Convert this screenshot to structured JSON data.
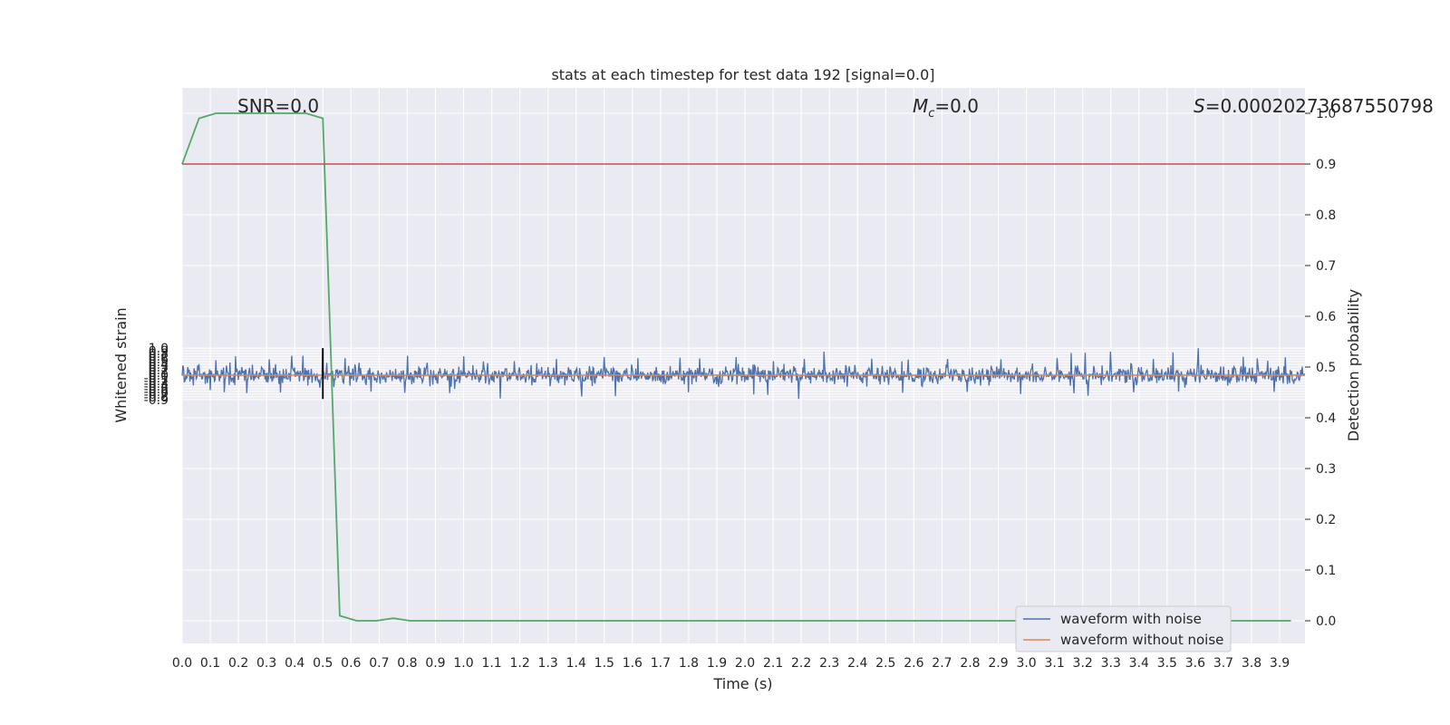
{
  "chart_data": {
    "type": "line",
    "title": "stats at each timestep for test data 192 [signal=0.0]",
    "xlabel": "Time (s)",
    "ylabel": "Whitened strain",
    "y2label": "Detection probability",
    "xlim": [
      0.0,
      3.99
    ],
    "ylim": [
      -0.97,
      1.08
    ],
    "y2lim": [
      -0.05,
      1.05
    ],
    "x_ticks": [
      0.0,
      0.1,
      0.2,
      0.3,
      0.4,
      0.5,
      0.6,
      0.7,
      0.8,
      0.9,
      1.0,
      1.1,
      1.2,
      1.3,
      1.4,
      1.5,
      1.6,
      1.7,
      1.8,
      1.9,
      2.0,
      2.1,
      2.2,
      2.3,
      2.4,
      2.5,
      2.6,
      2.7,
      2.8,
      2.9,
      3.0,
      3.1,
      3.2,
      3.3,
      3.4,
      3.5,
      3.6,
      3.7,
      3.8,
      3.9
    ],
    "y_ticks": [
      1.0,
      0.9,
      0.8,
      0.7,
      0.6,
      0.5,
      0.4,
      0.3,
      0.2,
      0.1,
      0.0,
      -0.1,
      -0.2,
      -0.3,
      -0.4,
      -0.5,
      -0.6,
      -0.7,
      -0.8,
      -0.9
    ],
    "y2_ticks": [
      1.0,
      0.9,
      0.8,
      0.7,
      0.6,
      0.5,
      0.4,
      0.3,
      0.2,
      0.1,
      0.0
    ],
    "grid": true,
    "legend_placement": "lower-right",
    "annotations": {
      "snr": "SNR=0.0",
      "mc_symbol": "M",
      "mc_sub": "c",
      "mc_value": "=0.0",
      "s_symbol": "S",
      "s_value": "=0.00020273687550798"
    },
    "series": [
      {
        "name": "waveform with noise",
        "color": "#4c72b0",
        "note_envelope": "dense noise trace; envelope approx. peaks listed",
        "peaks": [
          {
            "x": 0.02,
            "y": 0.3
          },
          {
            "x": 0.06,
            "y": 0.41
          },
          {
            "x": 0.12,
            "y": 0.55
          },
          {
            "x": 0.17,
            "y": 0.47
          },
          {
            "x": 0.19,
            "y": 0.7
          },
          {
            "x": 0.25,
            "y": 0.39
          },
          {
            "x": 0.31,
            "y": 0.59
          },
          {
            "x": 0.39,
            "y": 0.72
          },
          {
            "x": 0.43,
            "y": 0.72
          },
          {
            "x": 0.5,
            "y": 1.0
          },
          {
            "x": 0.58,
            "y": 0.63
          },
          {
            "x": 0.63,
            "y": 0.46
          },
          {
            "x": 0.8,
            "y": 0.72
          },
          {
            "x": 0.87,
            "y": 0.46
          },
          {
            "x": 1.0,
            "y": 0.7
          },
          {
            "x": 1.07,
            "y": 0.51
          },
          {
            "x": 1.18,
            "y": 0.52
          },
          {
            "x": 1.33,
            "y": 0.6
          },
          {
            "x": 1.5,
            "y": 0.67
          },
          {
            "x": 1.62,
            "y": 0.63
          },
          {
            "x": 1.77,
            "y": 0.65
          },
          {
            "x": 1.84,
            "y": 0.62
          },
          {
            "x": 1.97,
            "y": 0.67
          },
          {
            "x": 2.1,
            "y": 0.52
          },
          {
            "x": 2.21,
            "y": 0.6
          },
          {
            "x": 2.28,
            "y": 0.87
          },
          {
            "x": 2.45,
            "y": 0.61
          },
          {
            "x": 2.58,
            "y": 0.58
          },
          {
            "x": 2.72,
            "y": 0.6
          },
          {
            "x": 2.91,
            "y": 0.59
          },
          {
            "x": 3.11,
            "y": 0.63
          },
          {
            "x": 3.16,
            "y": 0.82
          },
          {
            "x": 3.21,
            "y": 0.83
          },
          {
            "x": 3.3,
            "y": 0.87
          },
          {
            "x": 3.45,
            "y": 0.6
          },
          {
            "x": 3.52,
            "y": 0.84
          },
          {
            "x": 3.61,
            "y": 1.0
          },
          {
            "x": 3.77,
            "y": 0.68
          },
          {
            "x": 3.82,
            "y": 0.62
          },
          {
            "x": 3.92,
            "y": 0.66
          }
        ],
        "troughs": [
          {
            "x": 0.04,
            "y": -0.38
          },
          {
            "x": 0.1,
            "y": -0.55
          },
          {
            "x": 0.15,
            "y": -0.63
          },
          {
            "x": 0.23,
            "y": -0.66
          },
          {
            "x": 0.35,
            "y": -0.64
          },
          {
            "x": 0.49,
            "y": -0.46
          },
          {
            "x": 0.67,
            "y": -0.61
          },
          {
            "x": 0.79,
            "y": -0.65
          },
          {
            "x": 0.95,
            "y": -0.66
          },
          {
            "x": 1.13,
            "y": -0.86
          },
          {
            "x": 1.42,
            "y": -0.79
          },
          {
            "x": 1.54,
            "y": -0.78
          },
          {
            "x": 1.8,
            "y": -0.63
          },
          {
            "x": 2.03,
            "y": -0.71
          },
          {
            "x": 2.08,
            "y": -0.73
          },
          {
            "x": 2.19,
            "y": -0.88
          },
          {
            "x": 2.56,
            "y": -0.65
          },
          {
            "x": 2.79,
            "y": -0.62
          },
          {
            "x": 2.98,
            "y": -0.7
          },
          {
            "x": 3.17,
            "y": -0.67
          },
          {
            "x": 3.22,
            "y": -0.76
          },
          {
            "x": 3.38,
            "y": -0.63
          },
          {
            "x": 3.54,
            "y": -0.61
          },
          {
            "x": 3.88,
            "y": -0.62
          }
        ]
      },
      {
        "name": "waveform without noise",
        "color": "#dd8452",
        "x": [
          0.0,
          3.99
        ],
        "y": [
          0.0,
          0.0
        ]
      }
    ],
    "probability_series": {
      "color": "#55a868",
      "x": [
        0.0,
        0.06,
        0.12,
        0.19,
        0.25,
        0.31,
        0.37,
        0.44,
        0.5,
        0.56,
        0.62,
        0.69,
        0.75,
        0.81,
        0.87,
        0.94,
        1.0,
        1.5,
        2.0,
        2.5,
        3.0,
        3.5,
        3.94
      ],
      "y": [
        0.9,
        0.99,
        1.0,
        1.0,
        1.0,
        1.0,
        1.0,
        1.0,
        0.99,
        0.01,
        0.0,
        0.0,
        0.005,
        0.0,
        0.0,
        0.0,
        0.0,
        0.0,
        0.0,
        0.0,
        0.0,
        0.0,
        0.0
      ]
    },
    "threshold_line": {
      "color": "#c44e52",
      "y2": 0.9
    },
    "marker_line": {
      "color": "#000000",
      "x": 0.5,
      "y_from": -0.88,
      "y_to": 1.0
    }
  }
}
